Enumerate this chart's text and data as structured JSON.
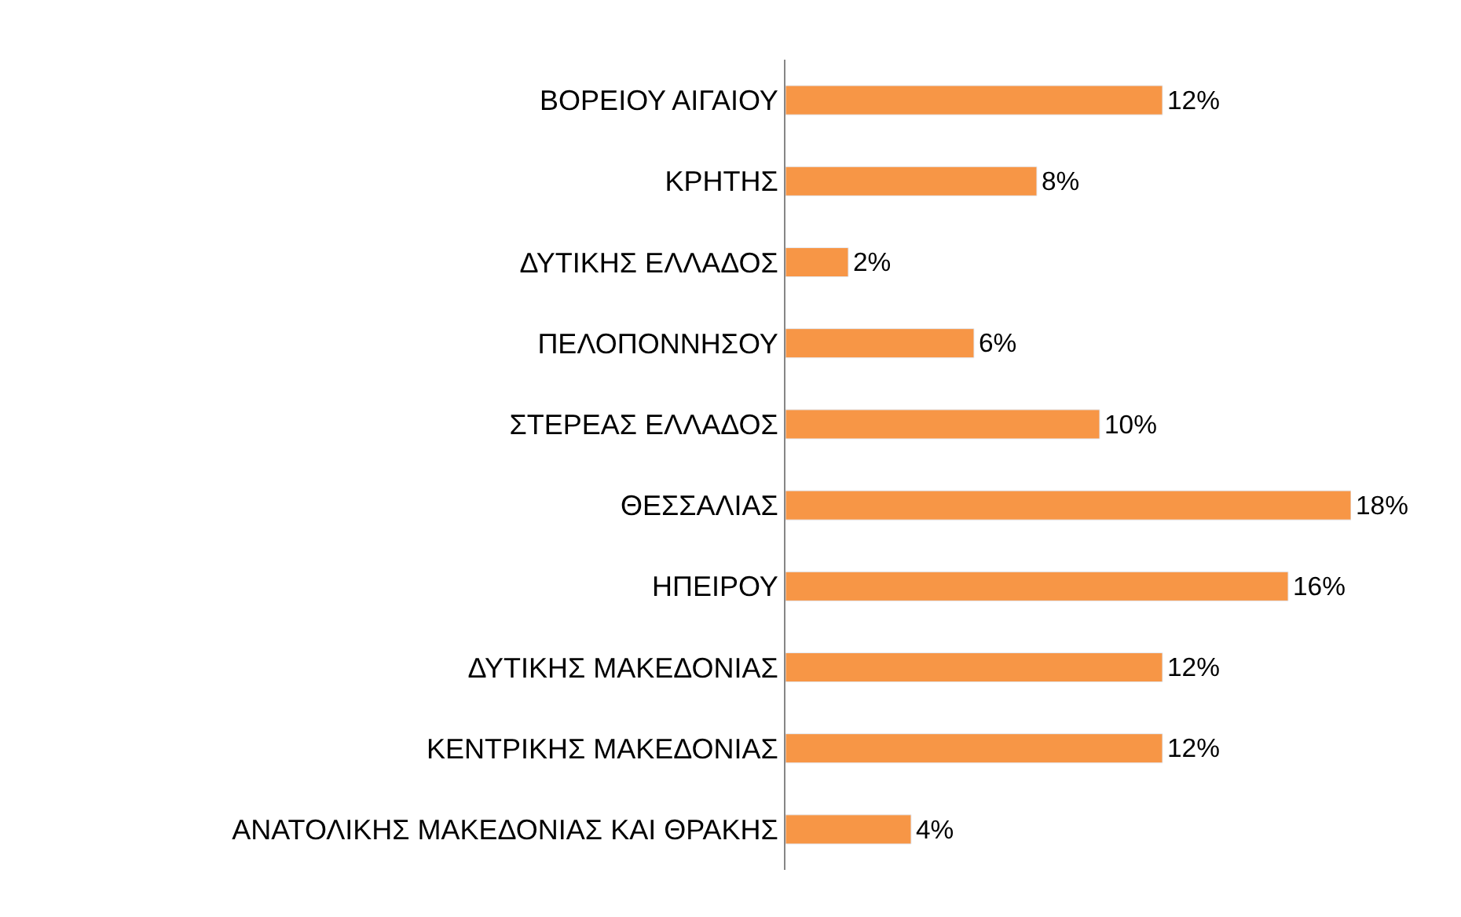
{
  "chart_data": {
    "type": "bar",
    "orientation": "horizontal",
    "categories": [
      "ΒΟΡΕΙΟΥ ΑΙΓΑΙΟΥ",
      "ΚΡΗΤΗΣ",
      "ΔΥΤΙΚΗΣ ΕΛΛΑΔΟΣ",
      "ΠΕΛΟΠΟΝΝΗΣΟΥ",
      "ΣΤΕΡΕΑΣ ΕΛΛΑΔΟΣ",
      "ΘΕΣΣΑΛΙΑΣ",
      "ΗΠΕΙΡΟΥ",
      "ΔΥΤΙΚΗΣ ΜΑΚΕΔΟΝΙΑΣ",
      "ΚΕΝΤΡΙΚΗΣ ΜΑΚΕΔΟΝΙΑΣ",
      "ΑΝΑΤΟΛΙΚΗΣ ΜΑΚΕΔΟΝΙΑΣ ΚΑΙ ΘΡΑΚΗΣ"
    ],
    "values": [
      12,
      8,
      2,
      6,
      10,
      18,
      16,
      12,
      12,
      4
    ],
    "value_labels": [
      "12%",
      "8%",
      "2%",
      "6%",
      "10%",
      "18%",
      "16%",
      "12%",
      "12%",
      "4%"
    ],
    "color": "#f79646"
  }
}
